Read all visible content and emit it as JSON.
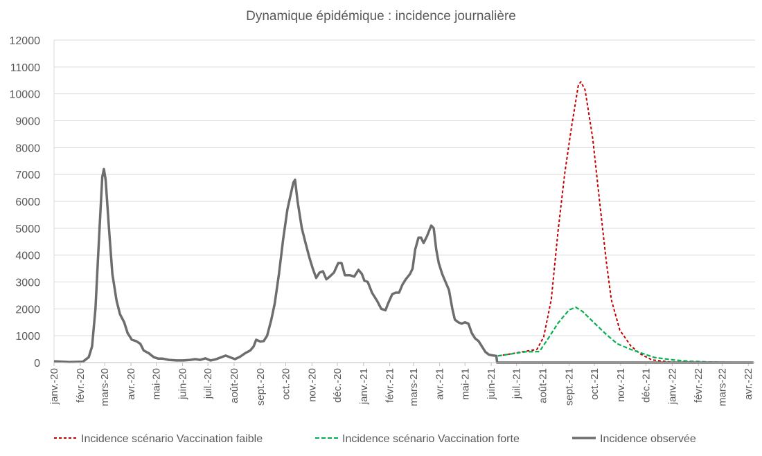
{
  "chart_data": {
    "type": "line",
    "title": "Dynamique épidémique : incidence journalière",
    "xlabel": "",
    "ylabel": "",
    "ylim": [
      0,
      12000
    ],
    "yticks": [
      0,
      1000,
      2000,
      3000,
      4000,
      5000,
      6000,
      7000,
      8000,
      9000,
      10000,
      11000,
      12000
    ],
    "xlim": [
      "2020-01-01",
      "2022-04-09"
    ],
    "xtick_labels": [
      "janv.-20",
      "févr.-20",
      "mars-20",
      "avr.-20",
      "mai-20",
      "juin-20",
      "juil.-20",
      "août-20",
      "sept.-20",
      "oct.-20",
      "nov.-20",
      "déc.-20",
      "janv.-21",
      "févr.-21",
      "mars-21",
      "avr.-21",
      "mai-21",
      "juin-21",
      "juil.-21",
      "août-21",
      "sept.-21",
      "oct.-21",
      "nov.-21",
      "déc.-21",
      "janv.-22",
      "févr.-22",
      "mars-22",
      "avr.-22"
    ],
    "grid": true,
    "legend_position": "bottom",
    "series": [
      {
        "name": "Incidence scénario Vaccination faible",
        "color": "#c00000",
        "style": "dotted",
        "x": [
          "2021-06-09",
          "2021-06-25",
          "2021-07-11",
          "2021-07-25",
          "2021-08-02",
          "2021-08-11",
          "2021-08-19",
          "2021-08-27",
          "2021-09-04",
          "2021-09-12",
          "2021-09-15",
          "2021-09-20",
          "2021-09-29",
          "2021-10-07",
          "2021-10-15",
          "2021-10-21",
          "2021-10-31",
          "2021-11-13",
          "2021-11-25",
          "2021-12-08",
          "2021-12-30",
          "2022-04-07"
        ],
        "y": [
          250,
          330,
          420,
          490,
          950,
          2340,
          4900,
          7050,
          8780,
          10330,
          10450,
          10150,
          8350,
          6030,
          3790,
          2340,
          1210,
          620,
          310,
          100,
          20,
          0
        ]
      },
      {
        "name": "Incidence scénario Vaccination forte",
        "color": "#00b050",
        "style": "dashed",
        "x": [
          "2021-06-09",
          "2021-07-11",
          "2021-07-28",
          "2021-08-07",
          "2021-08-19",
          "2021-09-01",
          "2021-09-09",
          "2021-09-17",
          "2021-10-01",
          "2021-10-15",
          "2021-10-28",
          "2021-11-13",
          "2021-11-25",
          "2021-12-11",
          "2022-01-02",
          "2022-01-22",
          "2022-02-16",
          "2022-04-07"
        ],
        "y": [
          250,
          400,
          410,
          880,
          1470,
          1960,
          2060,
          1900,
          1470,
          1050,
          700,
          490,
          360,
          190,
          100,
          50,
          20,
          0
        ]
      },
      {
        "name": "Incidence observée",
        "color": "#6d6d6d",
        "style": "solid",
        "x": [
          "2020-01-01",
          "2020-01-19",
          "2020-02-04",
          "2020-02-11",
          "2020-02-15",
          "2020-02-19",
          "2020-02-23",
          "2020-02-27",
          "2020-02-29",
          "2020-03-02",
          "2020-03-06",
          "2020-03-10",
          "2020-03-15",
          "2020-03-19",
          "2020-03-24",
          "2020-03-28",
          "2020-04-02",
          "2020-04-07",
          "2020-04-12",
          "2020-04-16",
          "2020-04-22",
          "2020-04-28",
          "2020-05-03",
          "2020-05-08",
          "2020-05-16",
          "2020-05-25",
          "2020-06-02",
          "2020-06-10",
          "2020-06-16",
          "2020-06-22",
          "2020-06-28",
          "2020-07-04",
          "2020-07-10",
          "2020-07-17",
          "2020-07-22",
          "2020-07-27",
          "2020-08-02",
          "2020-08-08",
          "2020-08-14",
          "2020-08-20",
          "2020-08-24",
          "2020-08-27",
          "2020-09-01",
          "2020-09-05",
          "2020-09-09",
          "2020-09-14",
          "2020-09-18",
          "2020-09-23",
          "2020-09-28",
          "2020-10-03",
          "2020-10-10",
          "2020-10-12",
          "2020-10-15",
          "2020-10-20",
          "2020-10-24",
          "2020-10-29",
          "2020-11-02",
          "2020-11-06",
          "2020-11-10",
          "2020-11-14",
          "2020-11-18",
          "2020-11-22",
          "2020-11-27",
          "2020-12-02",
          "2020-12-06",
          "2020-12-10",
          "2020-12-16",
          "2020-12-21",
          "2020-12-26",
          "2020-12-30",
          "2021-01-02",
          "2021-01-06",
          "2021-01-11",
          "2021-01-17",
          "2021-01-22",
          "2021-01-27",
          "2021-01-30",
          "2021-02-04",
          "2021-02-08",
          "2021-02-12",
          "2021-02-16",
          "2021-02-20",
          "2021-02-25",
          "2021-02-28",
          "2021-03-03",
          "2021-03-07",
          "2021-03-10",
          "2021-03-13",
          "2021-03-17",
          "2021-03-22",
          "2021-03-25",
          "2021-03-28",
          "2021-03-31",
          "2021-04-04",
          "2021-04-08",
          "2021-04-12",
          "2021-04-16",
          "2021-04-19",
          "2021-04-23",
          "2021-04-27",
          "2021-05-01",
          "2021-05-05",
          "2021-05-09",
          "2021-05-13",
          "2021-05-17",
          "2021-05-21",
          "2021-05-25",
          "2021-05-29",
          "2021-06-02",
          "2021-06-07",
          "2021-06-08",
          "2022-04-07"
        ],
        "y": [
          50,
          20,
          30,
          200,
          600,
          2000,
          4500,
          6900,
          7200,
          6800,
          5000,
          3300,
          2300,
          1800,
          1500,
          1100,
          850,
          800,
          700,
          450,
          350,
          200,
          150,
          150,
          100,
          80,
          80,
          100,
          130,
          100,
          160,
          80,
          120,
          200,
          260,
          200,
          130,
          220,
          350,
          450,
          600,
          850,
          780,
          800,
          1000,
          1600,
          2200,
          3300,
          4600,
          5700,
          6700,
          6800,
          6000,
          5000,
          4500,
          3900,
          3500,
          3150,
          3350,
          3400,
          3100,
          3200,
          3350,
          3700,
          3700,
          3250,
          3250,
          3200,
          3450,
          3300,
          3050,
          3000,
          2600,
          2300,
          2000,
          1950,
          2200,
          2550,
          2600,
          2600,
          2900,
          3100,
          3300,
          3500,
          4200,
          4650,
          4650,
          4450,
          4700,
          5100,
          5000,
          4200,
          3700,
          3300,
          3000,
          2700,
          2000,
          1600,
          1500,
          1450,
          1500,
          1450,
          1100,
          900,
          800,
          600,
          400,
          300,
          270,
          250,
          0,
          0
        ]
      }
    ]
  }
}
